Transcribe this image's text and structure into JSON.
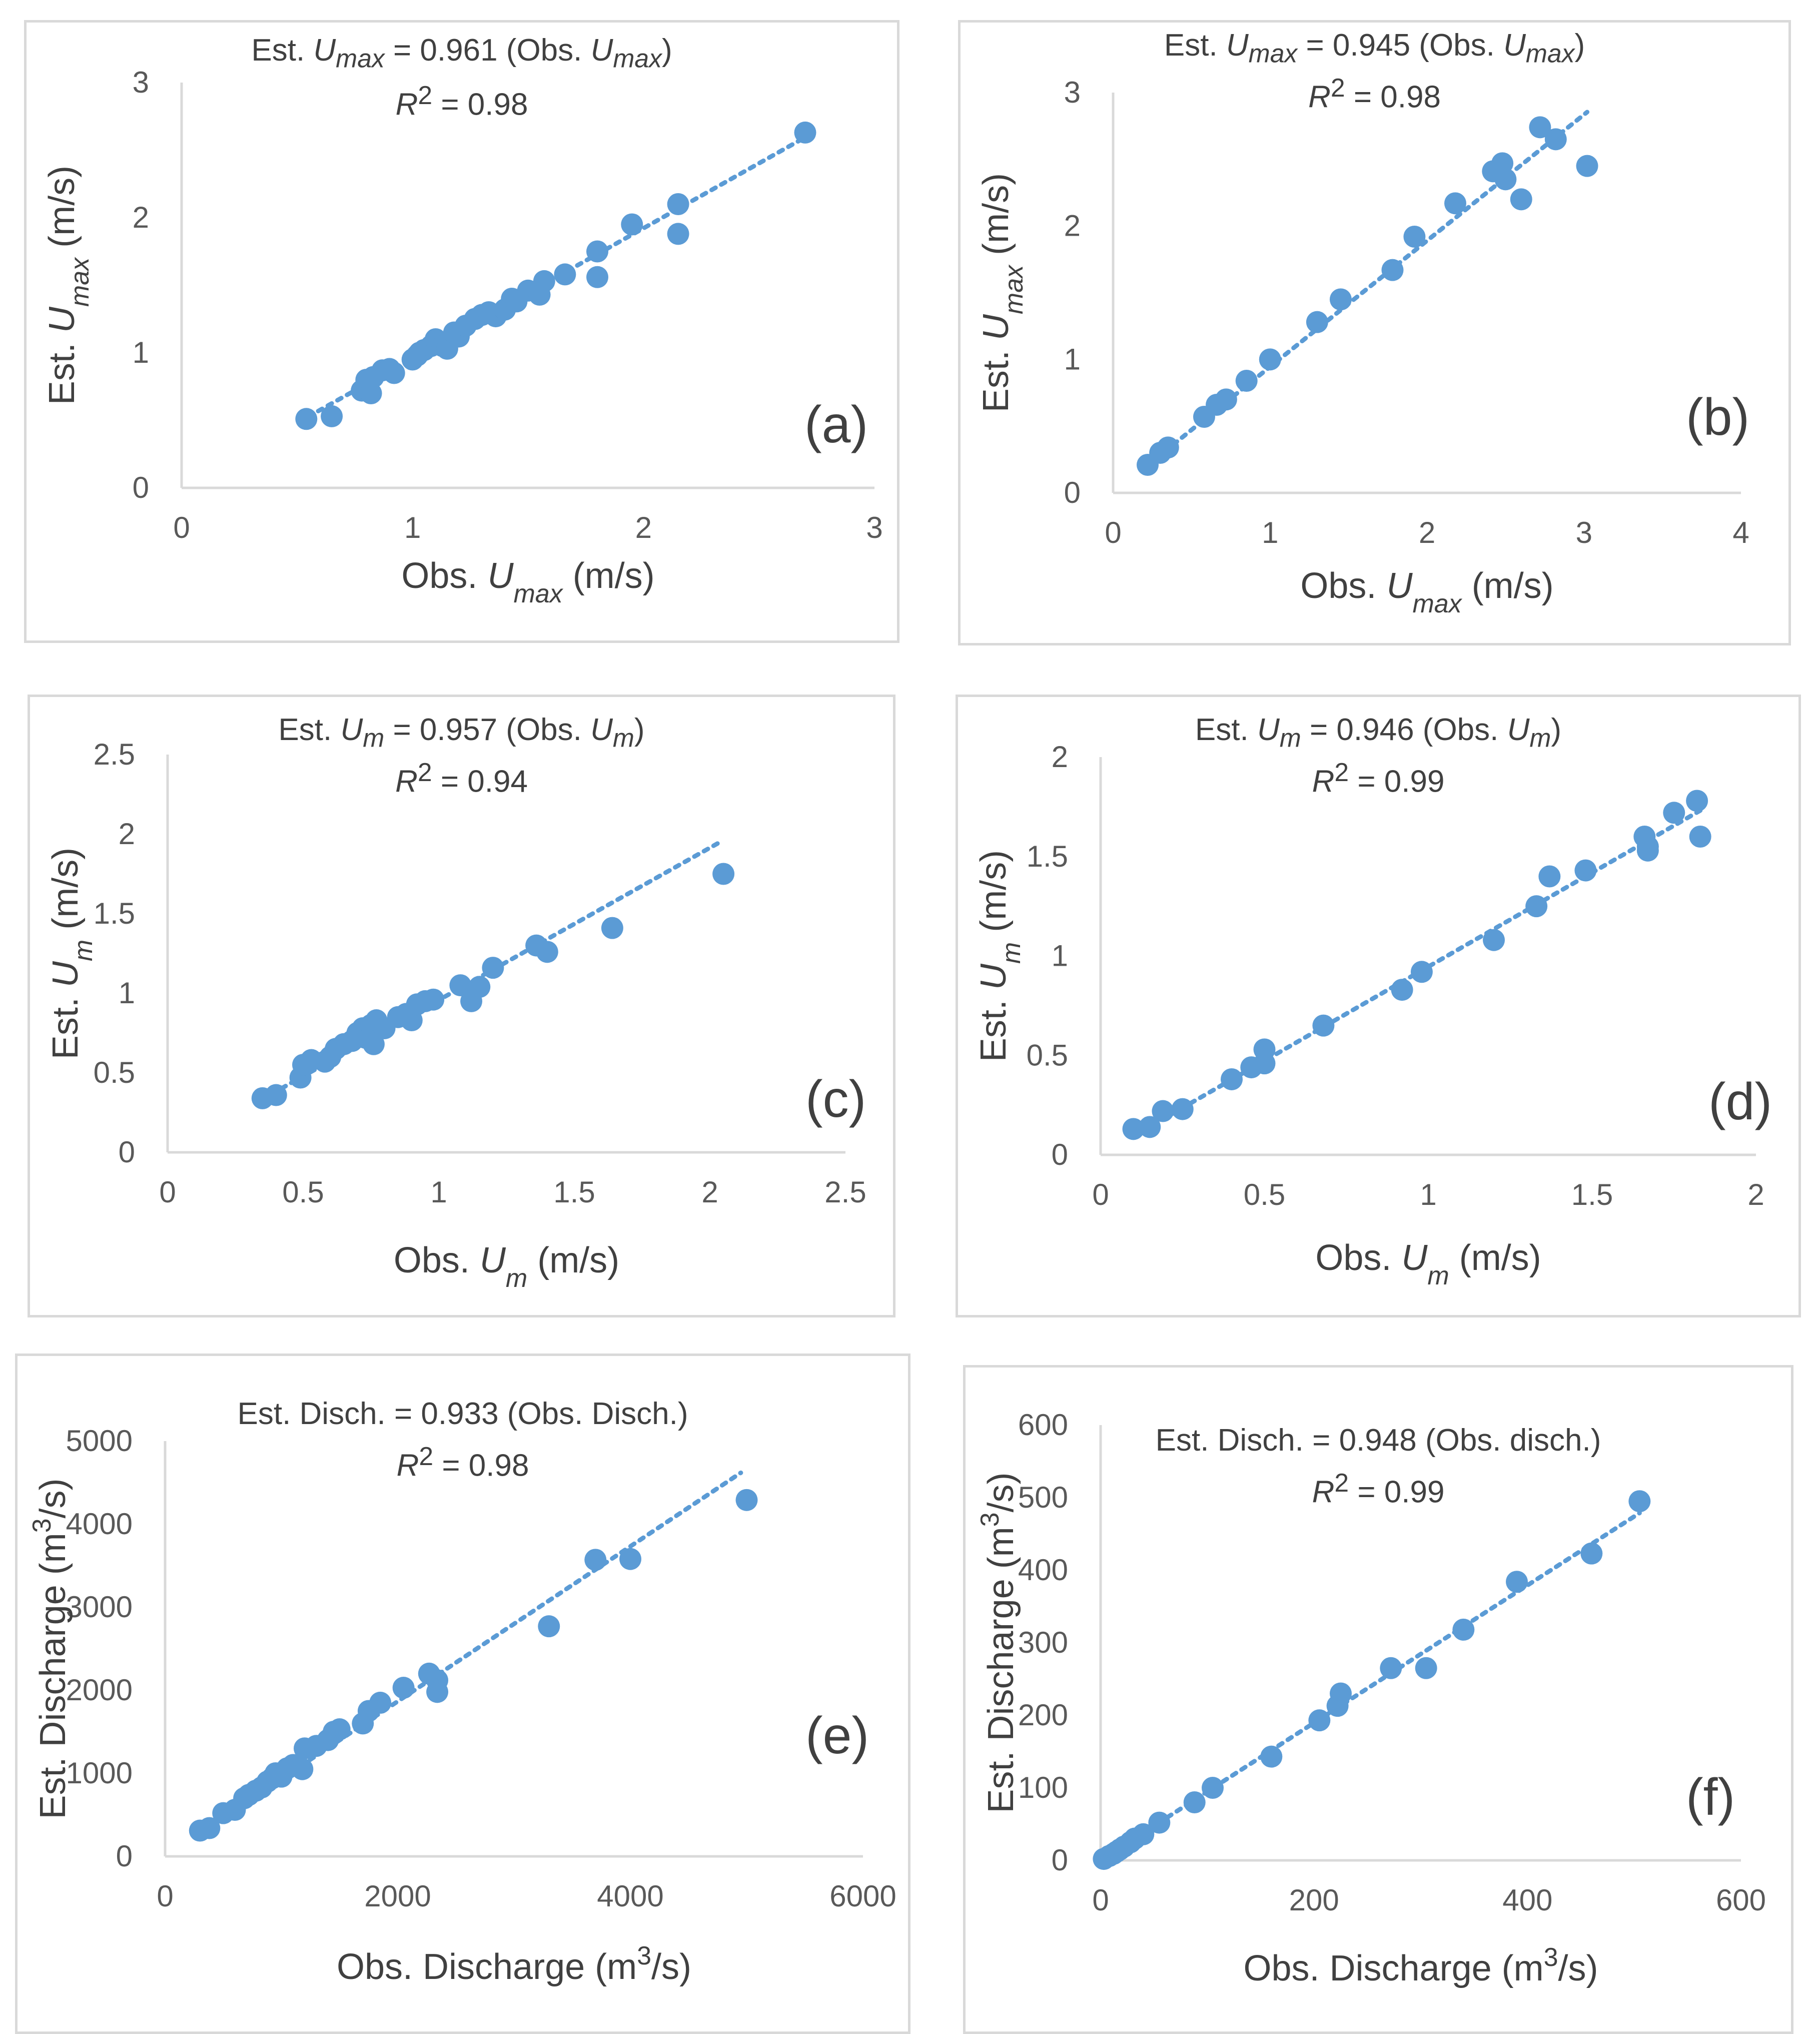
{
  "colors": {
    "marker": "#5b9bd5",
    "trendline": "#5b9bd5",
    "axis": "#d9d9d9",
    "text": "#404040",
    "border": "#d9d9d9"
  },
  "chart_data": [
    {
      "id": "a",
      "type": "scatter",
      "panel_label": "(a)",
      "equation": {
        "prefix": "Est. ",
        "var": "U",
        "sub": "max",
        "mid": " = 0.961 (Obs.  ",
        "var2": "U",
        "sub2": "max",
        "suffix": ")"
      },
      "r2": {
        "pre": "R",
        "sup": "2",
        "post": " = 0.98"
      },
      "xlabel": {
        "pre": "Obs. ",
        "var": "U",
        "sub": "max",
        "post": " (m/s)"
      },
      "ylabel": {
        "pre": "Est. ",
        "var": "U",
        "sub": "max",
        "post": " (m/s)"
      },
      "xlim": [
        0,
        3
      ],
      "ylim": [
        0,
        3
      ],
      "xticks": [
        "0",
        "1",
        "2",
        "3"
      ],
      "yticks": [
        "0",
        "1",
        "2",
        "3"
      ],
      "trendline": {
        "slope": 0.961,
        "x": [
          0.55,
          2.7
        ]
      },
      "points": [
        [
          0.54,
          0.51
        ],
        [
          0.65,
          0.53
        ],
        [
          0.78,
          0.72
        ],
        [
          0.8,
          0.8
        ],
        [
          0.82,
          0.7
        ],
        [
          0.83,
          0.82
        ],
        [
          0.87,
          0.87
        ],
        [
          0.9,
          0.88
        ],
        [
          0.92,
          0.85
        ],
        [
          1.0,
          0.95
        ],
        [
          1.02,
          0.98
        ],
        [
          1.03,
          1.0
        ],
        [
          1.05,
          1.02
        ],
        [
          1.08,
          1.05
        ],
        [
          1.1,
          1.1
        ],
        [
          1.13,
          1.05
        ],
        [
          1.15,
          1.03
        ],
        [
          1.18,
          1.15
        ],
        [
          1.2,
          1.12
        ],
        [
          1.23,
          1.2
        ],
        [
          1.27,
          1.25
        ],
        [
          1.3,
          1.28
        ],
        [
          1.33,
          1.3
        ],
        [
          1.36,
          1.27
        ],
        [
          1.4,
          1.32
        ],
        [
          1.43,
          1.4
        ],
        [
          1.45,
          1.38
        ],
        [
          1.5,
          1.46
        ],
        [
          1.55,
          1.43
        ],
        [
          1.57,
          1.53
        ],
        [
          1.66,
          1.58
        ],
        [
          1.8,
          1.75
        ],
        [
          1.8,
          1.56
        ],
        [
          1.95,
          1.95
        ],
        [
          2.15,
          2.1
        ],
        [
          2.15,
          1.88
        ],
        [
          2.7,
          2.63
        ]
      ]
    },
    {
      "id": "b",
      "type": "scatter",
      "panel_label": "(b)",
      "equation": {
        "prefix": "Est. ",
        "var": "U",
        "sub": "max",
        "mid": " = 0.945 (Obs. ",
        "var2": "U",
        "sub2": "max",
        "suffix": ")"
      },
      "r2": {
        "pre": "R",
        "sup": "2",
        "post": " = 0.98"
      },
      "xlabel": {
        "pre": "Obs. ",
        "var": "U",
        "sub": "max",
        "post": " (m/s)"
      },
      "ylabel": {
        "pre": "Est. ",
        "var": "U",
        "sub": "max",
        "post": " (m/s)"
      },
      "xlim": [
        0,
        4
      ],
      "ylim": [
        0,
        3
      ],
      "xticks": [
        "0",
        "1",
        "2",
        "3",
        "4"
      ],
      "yticks": [
        "0",
        "1",
        "2",
        "3"
      ],
      "trendline": {
        "slope": 0.945,
        "x": [
          0.22,
          3.02
        ]
      },
      "points": [
        [
          0.22,
          0.21
        ],
        [
          0.3,
          0.3
        ],
        [
          0.35,
          0.34
        ],
        [
          0.58,
          0.57
        ],
        [
          0.66,
          0.66
        ],
        [
          0.72,
          0.7
        ],
        [
          0.85,
          0.84
        ],
        [
          1.0,
          1.0
        ],
        [
          1.3,
          1.28
        ],
        [
          1.45,
          1.45
        ],
        [
          1.78,
          1.67
        ],
        [
          1.92,
          1.92
        ],
        [
          2.18,
          2.17
        ],
        [
          2.42,
          2.41
        ],
        [
          2.48,
          2.47
        ],
        [
          2.5,
          2.35
        ],
        [
          2.6,
          2.2
        ],
        [
          2.72,
          2.74
        ],
        [
          2.82,
          2.65
        ],
        [
          3.02,
          2.45
        ]
      ]
    },
    {
      "id": "c",
      "type": "scatter",
      "panel_label": "(c)",
      "equation": {
        "prefix": "Est. ",
        "var": "U",
        "sub": "m",
        "mid": " = 0.957 (Obs. ",
        "var2": "U",
        "sub2": "m",
        "suffix": ")"
      },
      "r2": {
        "pre": "R",
        "sup": "2",
        "post": " = 0.94"
      },
      "xlabel": {
        "pre": "Obs. ",
        "var": "U",
        "sub": "m",
        "post": " (m/s)"
      },
      "ylabel": {
        "pre": "Est. ",
        "var": "U",
        "sub": "m",
        "post": " (m/s)"
      },
      "xlim": [
        0,
        2.5
      ],
      "ylim": [
        0,
        2.5
      ],
      "xticks": [
        "0",
        "0.5",
        "1",
        "1.5",
        "2",
        "2.5"
      ],
      "yticks": [
        "0",
        "0.5",
        "1",
        "1.5",
        "2",
        "2.5"
      ],
      "trendline": {
        "slope": 0.957,
        "x": [
          0.35,
          2.03
        ]
      },
      "points": [
        [
          0.35,
          0.34
        ],
        [
          0.4,
          0.36
        ],
        [
          0.49,
          0.47
        ],
        [
          0.5,
          0.55
        ],
        [
          0.53,
          0.58
        ],
        [
          0.58,
          0.57
        ],
        [
          0.6,
          0.6
        ],
        [
          0.62,
          0.65
        ],
        [
          0.65,
          0.68
        ],
        [
          0.68,
          0.7
        ],
        [
          0.7,
          0.75
        ],
        [
          0.72,
          0.78
        ],
        [
          0.73,
          0.72
        ],
        [
          0.75,
          0.8
        ],
        [
          0.76,
          0.68
        ],
        [
          0.77,
          0.83
        ],
        [
          0.8,
          0.78
        ],
        [
          0.85,
          0.85
        ],
        [
          0.88,
          0.87
        ],
        [
          0.9,
          0.83
        ],
        [
          0.92,
          0.93
        ],
        [
          0.95,
          0.95
        ],
        [
          0.98,
          0.96
        ],
        [
          1.08,
          1.05
        ],
        [
          1.12,
          0.95
        ],
        [
          1.15,
          1.04
        ],
        [
          1.2,
          1.16
        ],
        [
          1.36,
          1.3
        ],
        [
          1.4,
          1.26
        ],
        [
          1.64,
          1.41
        ],
        [
          2.05,
          1.75
        ]
      ]
    },
    {
      "id": "d",
      "type": "scatter",
      "panel_label": "(d)",
      "equation": {
        "prefix": "Est. ",
        "var": "U",
        "sub": "m",
        "mid": " = 0.946 (Obs. ",
        "var2": "U",
        "sub2": "m",
        "suffix": ")"
      },
      "r2": {
        "pre": "R",
        "sup": "2",
        "post": " = 0.99"
      },
      "xlabel": {
        "pre": "Obs. ",
        "var": "U",
        "sub": "m",
        "post": " (m/s)"
      },
      "ylabel": {
        "pre": "Est. ",
        "var": "U",
        "sub": "m",
        "post": " (m/s)"
      },
      "xlim": [
        0,
        2
      ],
      "ylim": [
        0,
        2
      ],
      "xticks": [
        "0",
        "0.5",
        "1",
        "1.5",
        "2"
      ],
      "yticks": [
        "0",
        "0.5",
        "1",
        "1.5",
        "2"
      ],
      "trendline": {
        "slope": 0.946,
        "x": [
          0.1,
          1.83
        ]
      },
      "points": [
        [
          0.1,
          0.13
        ],
        [
          0.15,
          0.14
        ],
        [
          0.19,
          0.22
        ],
        [
          0.25,
          0.23
        ],
        [
          0.4,
          0.38
        ],
        [
          0.46,
          0.44
        ],
        [
          0.5,
          0.53
        ],
        [
          0.5,
          0.46
        ],
        [
          0.68,
          0.65
        ],
        [
          0.92,
          0.83
        ],
        [
          0.98,
          0.92
        ],
        [
          1.2,
          1.08
        ],
        [
          1.33,
          1.25
        ],
        [
          1.37,
          1.4
        ],
        [
          1.48,
          1.43
        ],
        [
          1.66,
          1.6
        ],
        [
          1.67,
          1.55
        ],
        [
          1.67,
          1.53
        ],
        [
          1.75,
          1.72
        ],
        [
          1.82,
          1.78
        ],
        [
          1.83,
          1.6
        ]
      ]
    },
    {
      "id": "e",
      "type": "scatter",
      "panel_label": "(e)",
      "equation": {
        "text": "Est. Disch. = 0.933 (Obs. Disch.)"
      },
      "r2": {
        "pre": "R",
        "sup": "2",
        "post": " = 0.98"
      },
      "xlabel": {
        "pre": "Obs. Discharge (m",
        "sup": "3",
        "post": "/s)"
      },
      "ylabel": {
        "pre": "Est. Discharge (m",
        "sup": "3",
        "post": "/s)"
      },
      "xlim": [
        0,
        6000
      ],
      "ylim": [
        0,
        5000
      ],
      "xticks": [
        "0",
        "2000",
        "4000",
        "6000"
      ],
      "yticks": [
        "0",
        "1000",
        "2000",
        "3000",
        "4000",
        "5000"
      ],
      "trendline": {
        "slope": 0.933,
        "x": [
          300,
          4950
        ]
      },
      "points": [
        [
          300,
          310
        ],
        [
          380,
          340
        ],
        [
          500,
          520
        ],
        [
          600,
          560
        ],
        [
          680,
          700
        ],
        [
          720,
          740
        ],
        [
          780,
          790
        ],
        [
          830,
          830
        ],
        [
          880,
          900
        ],
        [
          920,
          940
        ],
        [
          950,
          1000
        ],
        [
          1000,
          960
        ],
        [
          1050,
          1060
        ],
        [
          1100,
          1100
        ],
        [
          1180,
          1050
        ],
        [
          1200,
          1300
        ],
        [
          1300,
          1330
        ],
        [
          1400,
          1400
        ],
        [
          1450,
          1500
        ],
        [
          1500,
          1530
        ],
        [
          1700,
          1600
        ],
        [
          1750,
          1750
        ],
        [
          1850,
          1850
        ],
        [
          2050,
          2030
        ],
        [
          2270,
          2200
        ],
        [
          2340,
          2120
        ],
        [
          2340,
          1980
        ],
        [
          3300,
          2770
        ],
        [
          3700,
          3570
        ],
        [
          4000,
          3580
        ],
        [
          5000,
          4290
        ]
      ]
    },
    {
      "id": "f",
      "type": "scatter",
      "panel_label": "(f)",
      "equation": {
        "text": "Est. Disch. = 0.948 (Obs. disch.)"
      },
      "r2": {
        "pre": "R",
        "sup": "2",
        "post": " = 0.99"
      },
      "xlabel": {
        "pre": "Obs. Discharge (m",
        "sup": "3",
        "post": "/s)"
      },
      "ylabel": {
        "pre": "Est. Discharge (m",
        "sup": "3",
        "post": "/s)"
      },
      "xlim": [
        0,
        600
      ],
      "ylim": [
        0,
        600
      ],
      "xticks": [
        "0",
        "200",
        "400",
        "600"
      ],
      "yticks": [
        "0",
        "100",
        "200",
        "300",
        "400",
        "500",
        "600"
      ],
      "trendline": {
        "slope": 0.948,
        "x": [
          2,
          505
        ]
      },
      "points": [
        [
          3,
          2
        ],
        [
          8,
          6
        ],
        [
          12,
          9
        ],
        [
          15,
          12
        ],
        [
          18,
          15
        ],
        [
          22,
          19
        ],
        [
          28,
          25
        ],
        [
          32,
          30
        ],
        [
          40,
          36
        ],
        [
          55,
          52
        ],
        [
          88,
          80
        ],
        [
          105,
          100
        ],
        [
          160,
          143
        ],
        [
          205,
          193
        ],
        [
          222,
          213
        ],
        [
          225,
          230
        ],
        [
          272,
          265
        ],
        [
          305,
          265
        ],
        [
          340,
          318
        ],
        [
          390,
          384
        ],
        [
          460,
          423
        ],
        [
          505,
          495
        ]
      ]
    }
  ]
}
